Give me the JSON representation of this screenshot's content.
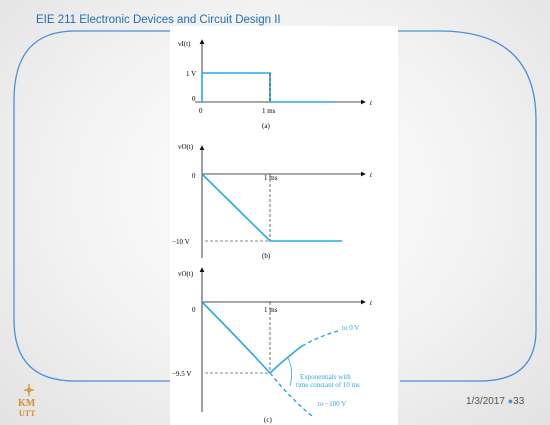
{
  "slide": {
    "title": "EIE 211 Electronic Devices and Circuit Design II",
    "date": "1/3/2017",
    "page_number": "33",
    "logo_text_top": "KM",
    "logo_text_bottom": "UTT"
  },
  "figure_a": {
    "ylabel": "vI(t)",
    "xlabel": "t",
    "ytick": "1 V",
    "origin": "0",
    "xtick": "1 ms",
    "caption": "(a)"
  },
  "figure_b": {
    "ylabel": "vO(t)",
    "xlabel": "t",
    "ytick": "−10 V",
    "origin": "0",
    "xtick": "1 ms",
    "caption": "(b)"
  },
  "figure_c": {
    "ylabel": "vO(t)",
    "xlabel": "t",
    "ytick": "−9.5 V",
    "origin": "0",
    "xtick": "1 ms",
    "caption": "(c)",
    "annotation_to0": "to 0 V",
    "annotation_line1": "Exponentials with",
    "annotation_line2": "time constant of 10 ms",
    "annotation_to100": "to −100 V"
  },
  "colors": {
    "accent": "#1d6fb5",
    "trace": "#29a9e0",
    "frame_line": "#4a90d9"
  }
}
